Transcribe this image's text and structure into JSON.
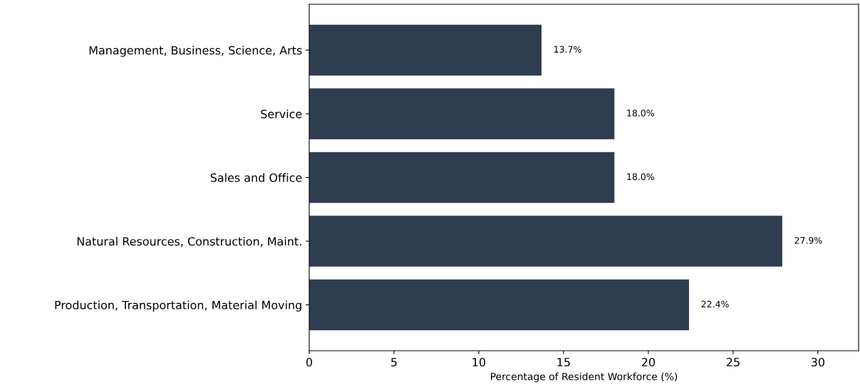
{
  "chart_data": {
    "type": "bar",
    "orientation": "horizontal",
    "xlabel": "Percentage of Resident Workforce (%)",
    "categories": [
      "Management, Business, Science, Arts",
      "Service",
      "Sales and Office",
      "Natural Resources, Construction, Maint.",
      "Production, Transportation, Material Moving"
    ],
    "values": [
      13.7,
      18.0,
      18.0,
      27.9,
      22.4
    ],
    "value_labels": [
      "13.7%",
      "18.0%",
      "18.0%",
      "27.9%",
      "22.4%"
    ],
    "color": "#2e3e50",
    "xlim": [
      0,
      32.4
    ],
    "xticks": [
      0,
      5,
      10,
      15,
      20,
      25,
      30
    ],
    "grid": false
  }
}
